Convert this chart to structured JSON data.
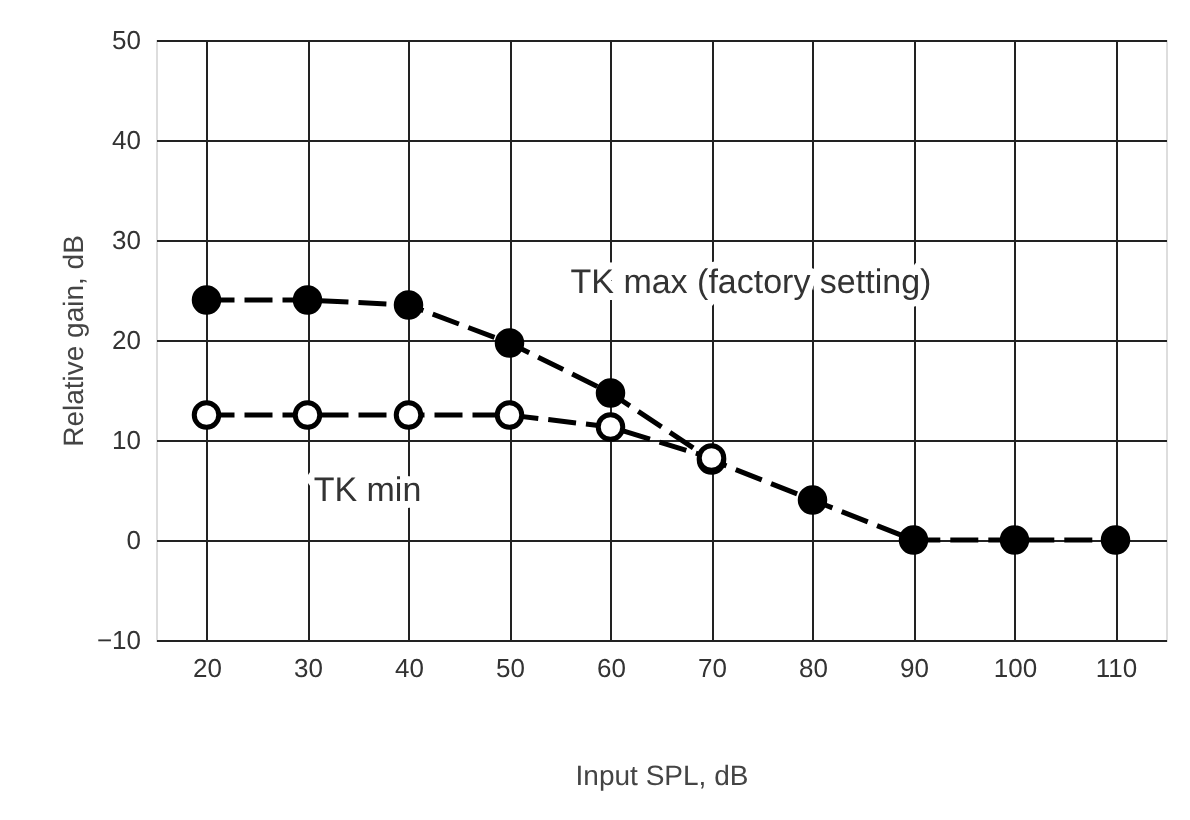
{
  "chart_data": {
    "type": "line",
    "xlabel": "Input SPL, dB",
    "ylabel": "Relative gain, dB",
    "x": [
      20,
      30,
      40,
      50,
      60,
      70,
      80,
      90,
      100,
      110
    ],
    "series": [
      {
        "name": "TK max (factory setting)",
        "color": "#000000",
        "marker": "circle",
        "values": [
          24,
          24,
          23.5,
          19.7,
          14.7,
          8,
          4,
          0,
          0,
          0
        ]
      },
      {
        "name": "TK min",
        "color": "#000000",
        "marker": "open circle",
        "values": [
          12.5,
          12.5,
          12.5,
          12.5,
          11.3,
          8.2,
          null,
          null,
          null,
          null
        ]
      }
    ],
    "xlim": [
      15,
      115
    ],
    "xticks": [
      20,
      30,
      40,
      50,
      60,
      70,
      80,
      90,
      100,
      110
    ],
    "ylim": [
      -10,
      50
    ],
    "yticks": [
      -10,
      0,
      10,
      20,
      30,
      40,
      50
    ],
    "grid": true,
    "line_style": "dashed",
    "legend": false
  }
}
